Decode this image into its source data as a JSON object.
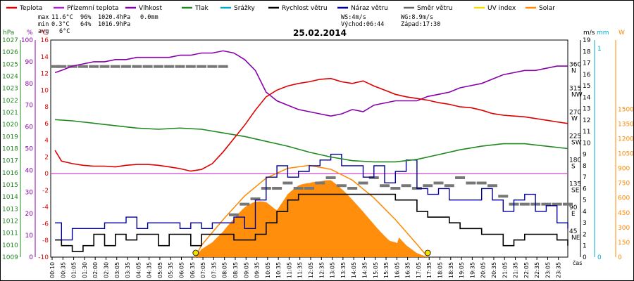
{
  "chart_data": {
    "type": "line",
    "title": "25.02.2014",
    "legend": [
      {
        "name": "Teplota",
        "color": "#dd0000"
      },
      {
        "name": "Přízemní teplota",
        "color": "#aa22cc"
      },
      {
        "name": "Vlhkost",
        "color": "#8800aa"
      },
      {
        "name": "Tlak",
        "color": "#228822"
      },
      {
        "name": "Srážky",
        "color": "#00aacc"
      },
      {
        "name": "Rychlost větru",
        "color": "#000000"
      },
      {
        "name": "Náraz větru",
        "color": "#000099"
      },
      {
        "name": "Směr větru",
        "color": "#666666"
      },
      {
        "name": "UV index",
        "color": "#f0e000"
      },
      {
        "name": "Solar",
        "color": "#ff8800"
      }
    ],
    "stats": {
      "max_label": "max",
      "max_temp": "11.6°C",
      "max_hum": "96%",
      "max_press": "1020.4hPa",
      "max_rain": "0.0mm",
      "min_label": "min",
      "min_temp": "0.3°C",
      "min_hum": "64%",
      "min_press": "1016.9hPa",
      "avg_label": "avg",
      "avg_temp": "6°C",
      "ws": "WS:4m/s",
      "wg": "WG:8.9m/s",
      "sunrise": "Východ:06:44",
      "sunset": "Západ:17:30"
    },
    "axis_units": {
      "press": "hPa",
      "hum": "%",
      "temp": "°C",
      "wind": "m/s",
      "rain": "mm",
      "solar": "W"
    },
    "axis_ranges": {
      "press": [
        1009,
        1027
      ],
      "hum": [
        0,
        100
      ],
      "temp": [
        -10,
        16
      ],
      "wind": [
        0,
        19
      ],
      "rain": [
        0,
        1
      ],
      "solar": [
        0,
        2200
      ]
    },
    "left_press_ticks": [
      "1027",
      "1026",
      "1025",
      "1024",
      "1023",
      "1022",
      "1021",
      "1020",
      "1019",
      "1018",
      "1017",
      "1016",
      "1015",
      "1014",
      "1013",
      "1012",
      "1011",
      "1010",
      "1009"
    ],
    "left_hum_ticks": [
      "100",
      "90",
      "80",
      "70",
      "60",
      "50",
      "40",
      "30",
      "20",
      "10",
      "0"
    ],
    "left_temp_ticks": [
      "16",
      "14",
      "12",
      "10",
      "8",
      "6",
      "4",
      "2",
      "0",
      "-2",
      "-4",
      "-6",
      "-8",
      "-10"
    ],
    "dir_ticks": [
      {
        "deg": "360",
        "lbl": "N"
      },
      {
        "deg": "315",
        "lbl": "NW"
      },
      {
        "deg": "270",
        "lbl": "W"
      },
      {
        "deg": "225",
        "lbl": "SW"
      },
      {
        "deg": "180",
        "lbl": "S"
      },
      {
        "deg": "135",
        "lbl": "SE"
      },
      {
        "deg": "90",
        "lbl": "E"
      },
      {
        "deg": "45",
        "lbl": "NE"
      }
    ],
    "wind_ticks": [
      "19",
      "18",
      "17",
      "16",
      "15",
      "14",
      "13",
      "12",
      "11",
      "10",
      "9",
      "8",
      "7",
      "6",
      "5",
      "4",
      "3",
      "2",
      "1",
      "0"
    ],
    "rain_ticks": [
      "1",
      "0"
    ],
    "solar_ticks": [
      "1500",
      "1350",
      "1200",
      "1050",
      "900",
      "750",
      "600",
      "450",
      "300",
      "150",
      "0"
    ],
    "x_unit_label": "čas",
    "x_ticks": [
      "00:10",
      "00:35",
      "01:05",
      "01:30",
      "02:00",
      "02:30",
      "03:05",
      "03:35",
      "04:05",
      "04:35",
      "05:05",
      "05:35",
      "06:05",
      "06:35",
      "07:05",
      "07:35",
      "08:05",
      "08:35",
      "09:05",
      "09:35",
      "10:05",
      "10:35",
      "11:05",
      "11:35",
      "12:05",
      "12:35",
      "13:05",
      "13:35",
      "14:05",
      "14:35",
      "15:05",
      "15:35",
      "16:05",
      "16:35",
      "17:05",
      "17:35",
      "18:05",
      "18:35",
      "19:05",
      "19:35",
      "20:05",
      "20:35",
      "21:05",
      "21:35",
      "22:05",
      "22:35",
      "23:05",
      "23:35"
    ],
    "sun_markers": [
      6.73,
      17.5
    ],
    "temperature": {
      "name": "Teplota",
      "unit": "°C",
      "x": [
        0.2,
        0.5,
        1,
        1.5,
        2,
        2.5,
        3,
        3.5,
        4,
        4.5,
        5,
        5.5,
        6,
        6.5,
        7,
        7.5,
        8,
        8.5,
        9,
        9.5,
        10,
        10.5,
        11,
        11.5,
        12,
        12.5,
        13,
        13.5,
        14,
        14.5,
        15,
        15.5,
        16,
        16.5,
        17,
        17.5,
        18,
        18.5,
        19,
        19.5,
        20,
        20.5,
        21,
        21.5,
        22,
        22.5,
        23,
        23.5,
        24
      ],
      "y": [
        2.8,
        1.5,
        1.2,
        1.0,
        0.9,
        0.9,
        0.8,
        1.0,
        1.1,
        1.1,
        1.0,
        0.8,
        0.6,
        0.3,
        0.5,
        1.2,
        2.6,
        4.2,
        5.8,
        7.6,
        9.2,
        10.0,
        10.5,
        10.8,
        11.0,
        11.3,
        11.4,
        11.0,
        10.8,
        11.1,
        10.5,
        10.0,
        9.5,
        9.2,
        9.0,
        8.8,
        8.5,
        8.3,
        8.0,
        7.9,
        7.6,
        7.2,
        7.0,
        6.9,
        6.8,
        6.6,
        6.4,
        6.2,
        6.0
      ]
    },
    "humidity": {
      "name": "Vlhkost",
      "unit": "%",
      "x": [
        0.2,
        0.5,
        1,
        1.5,
        2,
        2.5,
        3,
        3.5,
        4,
        4.5,
        5,
        5.5,
        6,
        6.5,
        7,
        7.5,
        8,
        8.5,
        9,
        9.5,
        10,
        10.5,
        11,
        11.5,
        12,
        12.5,
        13,
        13.5,
        14,
        14.5,
        15,
        15.5,
        16,
        16.5,
        17,
        17.5,
        18,
        18.5,
        19,
        19.5,
        20,
        20.5,
        21,
        21.5,
        22,
        22.5,
        23,
        23.5,
        24
      ],
      "y": [
        85,
        86,
        88,
        89,
        90,
        90,
        91,
        91,
        92,
        92,
        92,
        92,
        93,
        93,
        94,
        94,
        95,
        94,
        91,
        86,
        76,
        72,
        70,
        68,
        67,
        66,
        65,
        66,
        68,
        67,
        70,
        71,
        72,
        72,
        72,
        74,
        75,
        76,
        78,
        79,
        80,
        82,
        84,
        85,
        86,
        86,
        87,
        88,
        88
      ]
    },
    "pressure": {
      "name": "Tlak",
      "unit": "hPa",
      "x": [
        0.2,
        1,
        2,
        3,
        4,
        5,
        6,
        7,
        8,
        9,
        10,
        11,
        12,
        13,
        14,
        15,
        16,
        17,
        18,
        19,
        20,
        21,
        22,
        23,
        24
      ],
      "y": [
        1020.4,
        1020.3,
        1020.1,
        1019.9,
        1019.7,
        1019.6,
        1019.7,
        1019.6,
        1019.3,
        1019.0,
        1018.6,
        1018.2,
        1017.7,
        1017.3,
        1017.0,
        1016.9,
        1016.9,
        1017.1,
        1017.5,
        1017.9,
        1018.2,
        1018.4,
        1018.4,
        1018.2,
        1018.0
      ]
    },
    "wind_speed": {
      "name": "Rychlost větru",
      "unit": "m/s",
      "x": [
        0.2,
        0.5,
        1,
        1.5,
        2,
        2.5,
        3,
        3.5,
        4,
        4.5,
        5,
        5.5,
        6,
        6.5,
        7,
        7.5,
        8,
        8.5,
        9,
        9.5,
        10,
        10.5,
        11,
        11.5,
        12,
        12.5,
        13,
        13.5,
        14,
        14.5,
        15,
        15.5,
        16,
        16.5,
        17,
        17.5,
        18,
        18.5,
        19,
        19.5,
        20,
        20.5,
        21,
        21.5,
        22,
        22.5,
        23,
        23.5,
        24
      ],
      "y": [
        1.5,
        1,
        0.5,
        1,
        2,
        1,
        2,
        1.5,
        2,
        2,
        1,
        2,
        2,
        1,
        2,
        2,
        2,
        1.5,
        1.5,
        2,
        3,
        4,
        5,
        5.5,
        5.5,
        5.5,
        5.5,
        5.5,
        5.5,
        5.5,
        5.5,
        5.5,
        5,
        5,
        4,
        3.5,
        3.5,
        3,
        2.5,
        2.5,
        2,
        2,
        1,
        1.5,
        2,
        2,
        2,
        1.5,
        1
      ]
    },
    "wind_gust": {
      "name": "Náraz větru",
      "unit": "m/s",
      "x": [
        0.2,
        0.5,
        1,
        1.5,
        2,
        2.5,
        3,
        3.5,
        4,
        4.5,
        5,
        5.5,
        6,
        6.5,
        7,
        7.5,
        8,
        8.5,
        9,
        9.5,
        10,
        10.5,
        11,
        11.5,
        12,
        12.5,
        13,
        13.5,
        14,
        14.5,
        15,
        15.5,
        16,
        16.5,
        17,
        17.5,
        18,
        18.5,
        19,
        19.5,
        20,
        20.5,
        21,
        21.5,
        22,
        22.5,
        23,
        23.5,
        24
      ],
      "y": [
        3,
        1.5,
        2.5,
        2.5,
        2.5,
        3,
        3,
        3.5,
        2.5,
        3,
        3,
        3,
        2.5,
        3,
        2.5,
        3,
        3,
        3.5,
        2.5,
        5,
        7,
        8,
        7,
        7.5,
        8,
        8.5,
        9,
        8,
        8,
        7,
        8,
        6.5,
        7.5,
        8.5,
        6,
        5.5,
        6,
        5,
        5,
        5,
        6,
        5,
        4,
        5,
        5.5,
        4,
        4.5,
        3,
        2.5
      ]
    },
    "wind_dir": {
      "name": "Směr větru",
      "unit": "°",
      "x": [
        0.2,
        0.5,
        1,
        1.5,
        2,
        2.5,
        3,
        3.5,
        4,
        4.5,
        5,
        5.5,
        6,
        6.5,
        7,
        7.5,
        8,
        8.5,
        9,
        9.5,
        10,
        10.5,
        11,
        11.5,
        12,
        12.5,
        13,
        13.5,
        14,
        14.5,
        15,
        15.5,
        16,
        16.5,
        17,
        17.5,
        18,
        18.5,
        19,
        19.5,
        20,
        20.5,
        21,
        21.5,
        22,
        22.5,
        23,
        23.5,
        24
      ],
      "y": [
        360,
        360,
        360,
        360,
        360,
        360,
        360,
        360,
        360,
        360,
        360,
        360,
        360,
        360,
        360,
        360,
        360,
        80,
        100,
        110,
        130,
        130,
        140,
        130,
        130,
        140,
        150,
        135,
        130,
        140,
        150,
        135,
        130,
        135,
        130,
        135,
        140,
        135,
        150,
        140,
        140,
        135,
        115,
        100,
        100,
        100,
        100,
        100,
        100
      ]
    },
    "solar": {
      "name": "Solar",
      "unit": "W/m²",
      "x": [
        6.7,
        7,
        7.5,
        8,
        8.5,
        9,
        9.5,
        10,
        10.5,
        11,
        11.5,
        12,
        12.5,
        13,
        13.5,
        14,
        14.5,
        15,
        15.5,
        16,
        16.5,
        17,
        17.5
      ],
      "y": [
        0,
        80,
        150,
        260,
        400,
        560,
        700,
        820,
        860,
        930,
        900,
        830,
        790,
        780,
        700,
        620,
        540,
        450,
        350,
        240,
        120,
        40,
        0
      ]
    },
    "solar_theoretical": {
      "x": [
        6.7,
        7,
        8,
        9,
        10,
        11,
        12,
        13,
        14,
        15,
        16,
        17,
        17.5
      ],
      "y": [
        0,
        120,
        380,
        620,
        800,
        900,
        930,
        890,
        780,
        600,
        380,
        130,
        0
      ]
    },
    "uv_index": {
      "name": "UV index",
      "values": []
    },
    "rain": {
      "name": "Srážky",
      "total_mm": 0.0
    }
  }
}
